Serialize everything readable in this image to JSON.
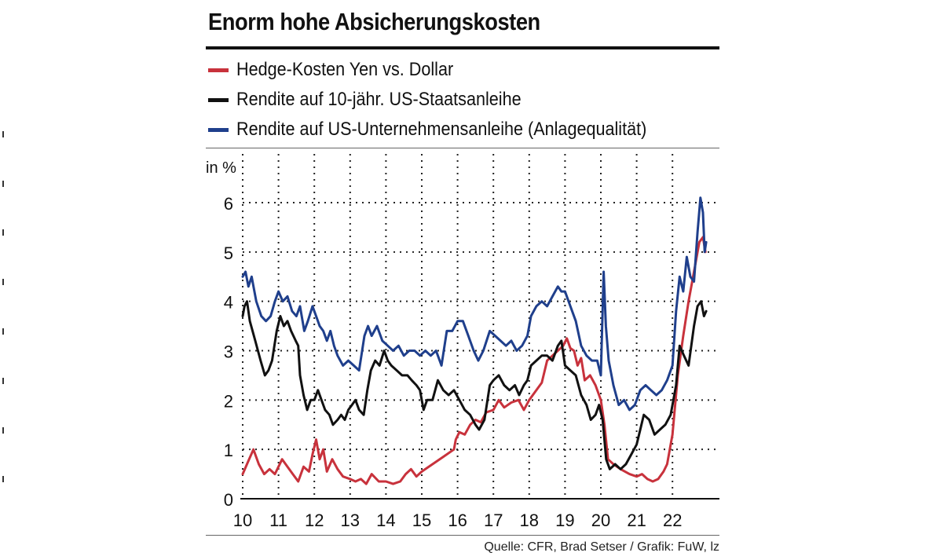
{
  "chart_data": {
    "type": "line",
    "title": "Enorm hohe Absicherungskosten",
    "ylabel": "in %",
    "xlabel": "",
    "x_ticks": [
      "10",
      "11",
      "12",
      "13",
      "14",
      "15",
      "16",
      "17",
      "18",
      "19",
      "20",
      "21",
      "22"
    ],
    "x_range": [
      2010,
      2022.95
    ],
    "ylim": [
      0,
      6.4
    ],
    "y_ticks": [
      0,
      1,
      2,
      3,
      4,
      5,
      6
    ],
    "grid": true,
    "legend_position": "top",
    "source": "Quelle: CFR, Brad Setser / Grafik: FuW, lz",
    "series": [
      {
        "name": "Hedge-Kosten Yen vs. Dollar",
        "color": "#c8323c",
        "points": [
          [
            2010.0,
            0.5
          ],
          [
            2010.15,
            0.75
          ],
          [
            2010.3,
            1.0
          ],
          [
            2010.45,
            0.7
          ],
          [
            2010.6,
            0.5
          ],
          [
            2010.75,
            0.6
          ],
          [
            2010.9,
            0.5
          ],
          [
            2011.0,
            0.65
          ],
          [
            2011.1,
            0.8
          ],
          [
            2011.25,
            0.65
          ],
          [
            2011.4,
            0.5
          ],
          [
            2011.55,
            0.35
          ],
          [
            2011.7,
            0.65
          ],
          [
            2011.85,
            0.55
          ],
          [
            2011.95,
            0.9
          ],
          [
            2012.05,
            1.2
          ],
          [
            2012.15,
            0.8
          ],
          [
            2012.25,
            1.0
          ],
          [
            2012.35,
            0.55
          ],
          [
            2012.5,
            0.8
          ],
          [
            2012.65,
            0.6
          ],
          [
            2012.8,
            0.45
          ],
          [
            2013.0,
            0.4
          ],
          [
            2013.15,
            0.35
          ],
          [
            2013.3,
            0.4
          ],
          [
            2013.45,
            0.3
          ],
          [
            2013.6,
            0.5
          ],
          [
            2013.8,
            0.35
          ],
          [
            2014.0,
            0.35
          ],
          [
            2014.2,
            0.3
          ],
          [
            2014.4,
            0.35
          ],
          [
            2014.55,
            0.5
          ],
          [
            2014.7,
            0.6
          ],
          [
            2014.85,
            0.45
          ],
          [
            2015.0,
            0.55
          ],
          [
            2015.3,
            0.7
          ],
          [
            2015.6,
            0.85
          ],
          [
            2015.9,
            1.0
          ],
          [
            2015.95,
            1.2
          ],
          [
            2016.05,
            1.35
          ],
          [
            2016.2,
            1.3
          ],
          [
            2016.35,
            1.5
          ],
          [
            2016.5,
            1.6
          ],
          [
            2016.65,
            1.55
          ],
          [
            2016.8,
            1.75
          ],
          [
            2017.0,
            1.8
          ],
          [
            2017.15,
            2.0
          ],
          [
            2017.3,
            1.85
          ],
          [
            2017.5,
            1.95
          ],
          [
            2017.7,
            2.0
          ],
          [
            2017.85,
            1.8
          ],
          [
            2018.0,
            2.0
          ],
          [
            2018.2,
            2.2
          ],
          [
            2018.35,
            2.35
          ],
          [
            2018.5,
            2.8
          ],
          [
            2018.65,
            2.9
          ],
          [
            2018.8,
            3.0
          ],
          [
            2018.95,
            3.1
          ],
          [
            2019.05,
            3.25
          ],
          [
            2019.15,
            3.05
          ],
          [
            2019.25,
            3.0
          ],
          [
            2019.35,
            2.7
          ],
          [
            2019.45,
            2.85
          ],
          [
            2019.55,
            2.4
          ],
          [
            2019.7,
            2.5
          ],
          [
            2019.85,
            2.3
          ],
          [
            2020.0,
            2.0
          ],
          [
            2020.1,
            1.5
          ],
          [
            2020.2,
            0.8
          ],
          [
            2020.35,
            0.7
          ],
          [
            2020.55,
            0.6
          ],
          [
            2020.8,
            0.5
          ],
          [
            2021.0,
            0.45
          ],
          [
            2021.15,
            0.5
          ],
          [
            2021.3,
            0.4
          ],
          [
            2021.45,
            0.35
          ],
          [
            2021.6,
            0.4
          ],
          [
            2021.75,
            0.55
          ],
          [
            2021.85,
            0.7
          ],
          [
            2022.0,
            1.3
          ],
          [
            2022.15,
            2.5
          ],
          [
            2022.3,
            3.3
          ],
          [
            2022.45,
            4.0
          ],
          [
            2022.6,
            4.6
          ],
          [
            2022.75,
            5.2
          ],
          [
            2022.85,
            5.3
          ],
          [
            2022.92,
            5.0
          ]
        ]
      },
      {
        "name": "Rendite auf 10-jähr. US-Staatsanleihe",
        "color": "#111111",
        "points": [
          [
            2010.0,
            3.7
          ],
          [
            2010.05,
            3.9
          ],
          [
            2010.12,
            4.0
          ],
          [
            2010.2,
            3.6
          ],
          [
            2010.35,
            3.2
          ],
          [
            2010.5,
            2.8
          ],
          [
            2010.62,
            2.5
          ],
          [
            2010.72,
            2.6
          ],
          [
            2010.82,
            2.8
          ],
          [
            2010.95,
            3.4
          ],
          [
            2011.05,
            3.7
          ],
          [
            2011.15,
            3.5
          ],
          [
            2011.25,
            3.6
          ],
          [
            2011.35,
            3.4
          ],
          [
            2011.48,
            3.2
          ],
          [
            2011.55,
            3.1
          ],
          [
            2011.6,
            2.5
          ],
          [
            2011.7,
            2.1
          ],
          [
            2011.8,
            1.8
          ],
          [
            2011.9,
            2.0
          ],
          [
            2012.0,
            2.0
          ],
          [
            2012.1,
            2.2
          ],
          [
            2012.2,
            2.0
          ],
          [
            2012.3,
            1.8
          ],
          [
            2012.42,
            1.7
          ],
          [
            2012.52,
            1.5
          ],
          [
            2012.65,
            1.6
          ],
          [
            2012.75,
            1.7
          ],
          [
            2012.85,
            1.6
          ],
          [
            2012.95,
            1.8
          ],
          [
            2013.05,
            1.9
          ],
          [
            2013.15,
            2.0
          ],
          [
            2013.25,
            1.8
          ],
          [
            2013.38,
            1.7
          ],
          [
            2013.48,
            2.2
          ],
          [
            2013.58,
            2.6
          ],
          [
            2013.7,
            2.8
          ],
          [
            2013.82,
            2.7
          ],
          [
            2013.95,
            3.0
          ],
          [
            2014.05,
            2.8
          ],
          [
            2014.15,
            2.7
          ],
          [
            2014.3,
            2.6
          ],
          [
            2014.45,
            2.5
          ],
          [
            2014.6,
            2.5
          ],
          [
            2014.72,
            2.4
          ],
          [
            2014.85,
            2.3
          ],
          [
            2014.95,
            2.2
          ],
          [
            2015.05,
            1.8
          ],
          [
            2015.15,
            2.0
          ],
          [
            2015.3,
            2.0
          ],
          [
            2015.45,
            2.4
          ],
          [
            2015.6,
            2.2
          ],
          [
            2015.75,
            2.1
          ],
          [
            2015.9,
            2.2
          ],
          [
            2016.05,
            2.0
          ],
          [
            2016.2,
            1.8
          ],
          [
            2016.35,
            1.7
          ],
          [
            2016.5,
            1.5
          ],
          [
            2016.6,
            1.4
          ],
          [
            2016.75,
            1.6
          ],
          [
            2016.9,
            2.3
          ],
          [
            2017.0,
            2.4
          ],
          [
            2017.15,
            2.5
          ],
          [
            2017.3,
            2.3
          ],
          [
            2017.45,
            2.2
          ],
          [
            2017.6,
            2.3
          ],
          [
            2017.72,
            2.1
          ],
          [
            2017.85,
            2.3
          ],
          [
            2017.95,
            2.4
          ],
          [
            2018.05,
            2.7
          ],
          [
            2018.2,
            2.8
          ],
          [
            2018.35,
            2.9
          ],
          [
            2018.5,
            2.9
          ],
          [
            2018.65,
            2.8
          ],
          [
            2018.8,
            3.1
          ],
          [
            2018.9,
            3.2
          ],
          [
            2019.0,
            2.7
          ],
          [
            2019.15,
            2.6
          ],
          [
            2019.3,
            2.5
          ],
          [
            2019.45,
            2.1
          ],
          [
            2019.6,
            1.9
          ],
          [
            2019.72,
            1.6
          ],
          [
            2019.85,
            1.7
          ],
          [
            2019.95,
            1.9
          ],
          [
            2020.05,
            1.6
          ],
          [
            2020.15,
            0.8
          ],
          [
            2020.25,
            0.6
          ],
          [
            2020.4,
            0.7
          ],
          [
            2020.55,
            0.6
          ],
          [
            2020.7,
            0.7
          ],
          [
            2020.85,
            0.9
          ],
          [
            2021.0,
            1.1
          ],
          [
            2021.1,
            1.4
          ],
          [
            2021.2,
            1.7
          ],
          [
            2021.35,
            1.6
          ],
          [
            2021.5,
            1.3
          ],
          [
            2021.65,
            1.4
          ],
          [
            2021.8,
            1.5
          ],
          [
            2021.95,
            1.7
          ],
          [
            2022.1,
            2.3
          ],
          [
            2022.2,
            3.1
          ],
          [
            2022.32,
            2.9
          ],
          [
            2022.45,
            2.7
          ],
          [
            2022.6,
            3.5
          ],
          [
            2022.7,
            3.9
          ],
          [
            2022.8,
            4.0
          ],
          [
            2022.88,
            3.7
          ],
          [
            2022.94,
            3.8
          ]
        ]
      },
      {
        "name": "Rendite auf US-Unternehmensanleihe (Anlagequalität)",
        "color": "#1f3f8c",
        "points": [
          [
            2010.0,
            4.5
          ],
          [
            2010.08,
            4.6
          ],
          [
            2010.16,
            4.3
          ],
          [
            2010.25,
            4.5
          ],
          [
            2010.38,
            4.0
          ],
          [
            2010.52,
            3.7
          ],
          [
            2010.65,
            3.6
          ],
          [
            2010.78,
            3.7
          ],
          [
            2010.9,
            4.0
          ],
          [
            2011.0,
            4.2
          ],
          [
            2011.12,
            4.0
          ],
          [
            2011.25,
            4.1
          ],
          [
            2011.38,
            3.8
          ],
          [
            2011.5,
            3.7
          ],
          [
            2011.6,
            3.9
          ],
          [
            2011.72,
            3.4
          ],
          [
            2011.82,
            3.6
          ],
          [
            2011.95,
            3.9
          ],
          [
            2012.05,
            3.7
          ],
          [
            2012.15,
            3.5
          ],
          [
            2012.25,
            3.4
          ],
          [
            2012.35,
            3.2
          ],
          [
            2012.45,
            3.4
          ],
          [
            2012.55,
            3.1
          ],
          [
            2012.65,
            2.9
          ],
          [
            2012.8,
            2.7
          ],
          [
            2012.95,
            2.8
          ],
          [
            2013.1,
            2.7
          ],
          [
            2013.25,
            2.6
          ],
          [
            2013.4,
            3.3
          ],
          [
            2013.5,
            3.5
          ],
          [
            2013.6,
            3.3
          ],
          [
            2013.75,
            3.5
          ],
          [
            2013.9,
            3.2
          ],
          [
            2014.05,
            3.1
          ],
          [
            2014.2,
            3.0
          ],
          [
            2014.35,
            3.1
          ],
          [
            2014.5,
            2.9
          ],
          [
            2014.65,
            3.0
          ],
          [
            2014.8,
            3.0
          ],
          [
            2014.95,
            2.9
          ],
          [
            2015.1,
            3.0
          ],
          [
            2015.25,
            2.9
          ],
          [
            2015.4,
            3.0
          ],
          [
            2015.55,
            2.7
          ],
          [
            2015.7,
            3.4
          ],
          [
            2015.85,
            3.4
          ],
          [
            2016.0,
            3.6
          ],
          [
            2016.15,
            3.6
          ],
          [
            2016.3,
            3.3
          ],
          [
            2016.45,
            3.0
          ],
          [
            2016.58,
            2.8
          ],
          [
            2016.72,
            3.0
          ],
          [
            2016.9,
            3.4
          ],
          [
            2017.05,
            3.3
          ],
          [
            2017.2,
            3.2
          ],
          [
            2017.35,
            3.1
          ],
          [
            2017.5,
            3.2
          ],
          [
            2017.65,
            3.0
          ],
          [
            2017.8,
            3.1
          ],
          [
            2017.95,
            3.3
          ],
          [
            2018.05,
            3.7
          ],
          [
            2018.2,
            3.9
          ],
          [
            2018.35,
            4.0
          ],
          [
            2018.5,
            3.9
          ],
          [
            2018.65,
            4.1
          ],
          [
            2018.8,
            4.3
          ],
          [
            2018.9,
            4.2
          ],
          [
            2019.0,
            4.2
          ],
          [
            2019.15,
            3.9
          ],
          [
            2019.3,
            3.6
          ],
          [
            2019.45,
            3.1
          ],
          [
            2019.6,
            2.9
          ],
          [
            2019.75,
            2.8
          ],
          [
            2019.9,
            2.8
          ],
          [
            2020.0,
            2.5
          ],
          [
            2020.08,
            4.6
          ],
          [
            2020.14,
            3.5
          ],
          [
            2020.22,
            2.8
          ],
          [
            2020.35,
            2.3
          ],
          [
            2020.5,
            1.9
          ],
          [
            2020.65,
            2.0
          ],
          [
            2020.8,
            1.8
          ],
          [
            2020.95,
            1.9
          ],
          [
            2021.1,
            2.2
          ],
          [
            2021.25,
            2.3
          ],
          [
            2021.4,
            2.2
          ],
          [
            2021.55,
            2.1
          ],
          [
            2021.7,
            2.2
          ],
          [
            2021.85,
            2.4
          ],
          [
            2022.0,
            2.7
          ],
          [
            2022.1,
            3.8
          ],
          [
            2022.2,
            4.5
          ],
          [
            2022.3,
            4.2
          ],
          [
            2022.4,
            4.9
          ],
          [
            2022.5,
            4.5
          ],
          [
            2022.6,
            4.4
          ],
          [
            2022.7,
            5.4
          ],
          [
            2022.78,
            6.1
          ],
          [
            2022.85,
            5.8
          ],
          [
            2022.9,
            5.0
          ],
          [
            2022.94,
            5.2
          ]
        ]
      }
    ]
  }
}
